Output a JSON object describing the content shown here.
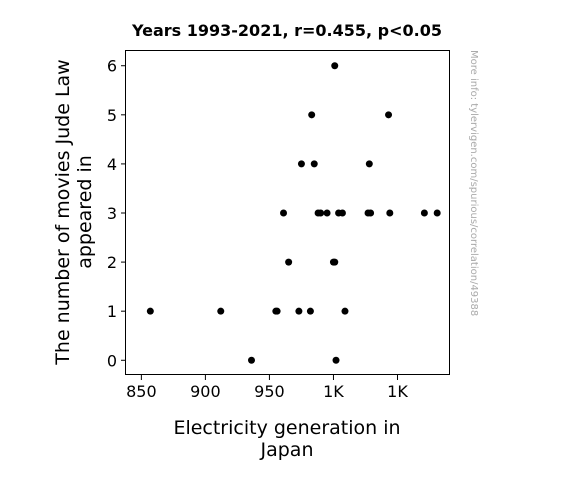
{
  "chart_data": {
    "type": "scatter",
    "title": "Years 1993-2021, r=0.455, p<0.05",
    "xlabel": [
      "Electricity generation in",
      "Japan"
    ],
    "ylabel": [
      "The number of movies Jude Law",
      "appeared in"
    ],
    "xlim": [
      838,
      1091
    ],
    "ylim": [
      -0.3,
      6.3
    ],
    "xticks": [
      {
        "value": 850,
        "label": "850"
      },
      {
        "value": 900,
        "label": "900"
      },
      {
        "value": 950,
        "label": "950"
      },
      {
        "value": 1000,
        "label": "1K"
      },
      {
        "value": 1050,
        "label": "1K"
      }
    ],
    "yticks": [
      {
        "value": 0,
        "label": "0"
      },
      {
        "value": 1,
        "label": "1"
      },
      {
        "value": 2,
        "label": "2"
      },
      {
        "value": 3,
        "label": "3"
      },
      {
        "value": 4,
        "label": "4"
      },
      {
        "value": 5,
        "label": "5"
      },
      {
        "value": 6,
        "label": "6"
      }
    ],
    "grid": false,
    "marker_color": "#000000",
    "points": [
      {
        "x": 857,
        "y": 1
      },
      {
        "x": 912,
        "y": 1
      },
      {
        "x": 936,
        "y": 0
      },
      {
        "x": 955,
        "y": 1
      },
      {
        "x": 956,
        "y": 1
      },
      {
        "x": 961,
        "y": 3
      },
      {
        "x": 965,
        "y": 2
      },
      {
        "x": 973,
        "y": 1
      },
      {
        "x": 975,
        "y": 4
      },
      {
        "x": 982,
        "y": 1
      },
      {
        "x": 983,
        "y": 5
      },
      {
        "x": 985,
        "y": 4
      },
      {
        "x": 988,
        "y": 3
      },
      {
        "x": 990,
        "y": 3
      },
      {
        "x": 995,
        "y": 3
      },
      {
        "x": 1000,
        "y": 2
      },
      {
        "x": 1001,
        "y": 6
      },
      {
        "x": 1001,
        "y": 2
      },
      {
        "x": 1002,
        "y": 0
      },
      {
        "x": 1004,
        "y": 3
      },
      {
        "x": 1007,
        "y": 3
      },
      {
        "x": 1009,
        "y": 1
      },
      {
        "x": 1027,
        "y": 3
      },
      {
        "x": 1028,
        "y": 4
      },
      {
        "x": 1029,
        "y": 3
      },
      {
        "x": 1043,
        "y": 5
      },
      {
        "x": 1044,
        "y": 3
      },
      {
        "x": 1071,
        "y": 3
      },
      {
        "x": 1081,
        "y": 3
      }
    ]
  },
  "watermark": "More info: tylervigen.com/spurious/correlation/49388"
}
